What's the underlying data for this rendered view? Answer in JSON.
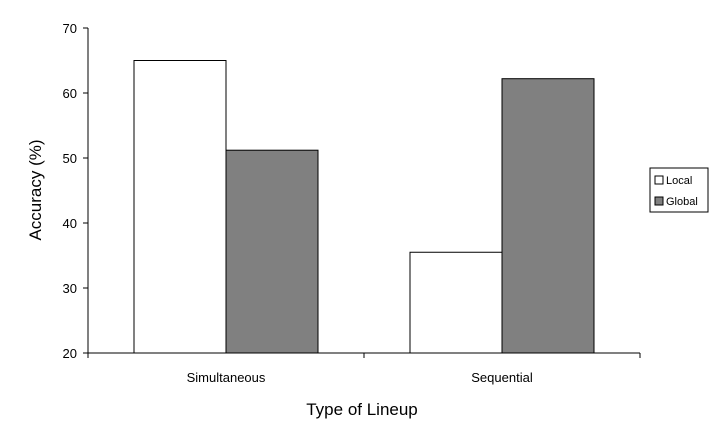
{
  "chart_data": {
    "type": "bar",
    "title": "",
    "xlabel": "Type of Lineup",
    "ylabel": "Accuracy (%)",
    "ylim": [
      20,
      70
    ],
    "yticks": [
      "20",
      "30",
      "40",
      "50",
      "60",
      "70"
    ],
    "categories": [
      "Simultaneous",
      "Sequential"
    ],
    "series": [
      {
        "name": "Local",
        "values": [
          65,
          35.5
        ],
        "color": "#ffffff"
      },
      {
        "name": "Global",
        "values": [
          51.2,
          62.2
        ],
        "color": "#808080"
      }
    ],
    "grid": false,
    "legend_position": "right"
  }
}
